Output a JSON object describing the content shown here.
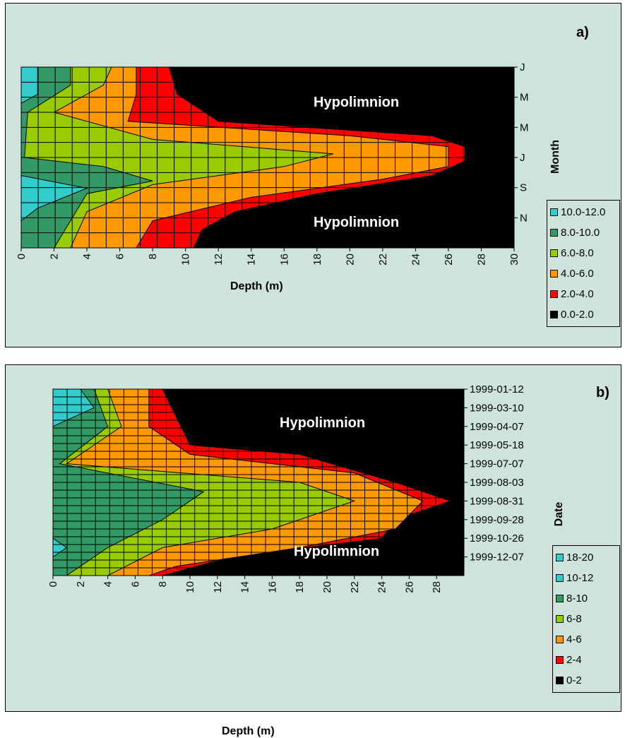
{
  "chart_data": [
    {
      "panel": "a)",
      "type": "heatmap",
      "xlabel": "Depth (m)",
      "ylabel": "Month",
      "x_ticks": [
        "0",
        "2",
        "4",
        "6",
        "8",
        "10",
        "12",
        "14",
        "16",
        "18",
        "20",
        "22",
        "24",
        "26",
        "28",
        "30"
      ],
      "xlim": [
        0,
        30
      ],
      "y_ticks": [
        "J",
        "M",
        "M",
        "J",
        "S",
        "N"
      ],
      "annotations": [
        "Hypolimnion",
        "Hypolimnion"
      ],
      "legend": [
        {
          "label": "10.0-12.0",
          "color": "#33cccc"
        },
        {
          "label": "8.0-10.0",
          "color": "#339966"
        },
        {
          "label": "6.0-8.0",
          "color": "#99cc00"
        },
        {
          "label": "4.0-6.0",
          "color": "#ff9900"
        },
        {
          "label": "2.0-4.0",
          "color": "#ff0000"
        },
        {
          "label": "0.0-2.0",
          "color": "#000000"
        }
      ],
      "legend_placement": "right",
      "grid": true
    },
    {
      "panel": "b)",
      "type": "heatmap",
      "xlabel": "Depth (m)",
      "ylabel": "Date",
      "x_ticks": [
        "0",
        "2",
        "4",
        "6",
        "8",
        "10",
        "12",
        "14",
        "16",
        "18",
        "20",
        "22",
        "24",
        "26",
        "28"
      ],
      "xlim": [
        0,
        30
      ],
      "y_ticks": [
        "1999-01-12",
        "1999-03-10",
        "1999-04-07",
        "1999-05-18",
        "1999-07-07",
        "1999-08-03",
        "1999-08-31",
        "1999-09-28",
        "1999-10-26",
        "1999-12-07"
      ],
      "annotations": [
        "Hypolimnion",
        "Hypolimnion"
      ],
      "legend": [
        {
          "label": "18-20",
          "color": "#33cccc"
        },
        {
          "label": "10-12",
          "color": "#33cccc"
        },
        {
          "label": "8-10",
          "color": "#339966"
        },
        {
          "label": "6-8",
          "color": "#99cc00"
        },
        {
          "label": "4-6",
          "color": "#ff9900"
        },
        {
          "label": "2-4",
          "color": "#ff0000"
        },
        {
          "label": "0-2",
          "color": "#000000"
        }
      ],
      "legend_placement": "right",
      "grid": true
    }
  ]
}
